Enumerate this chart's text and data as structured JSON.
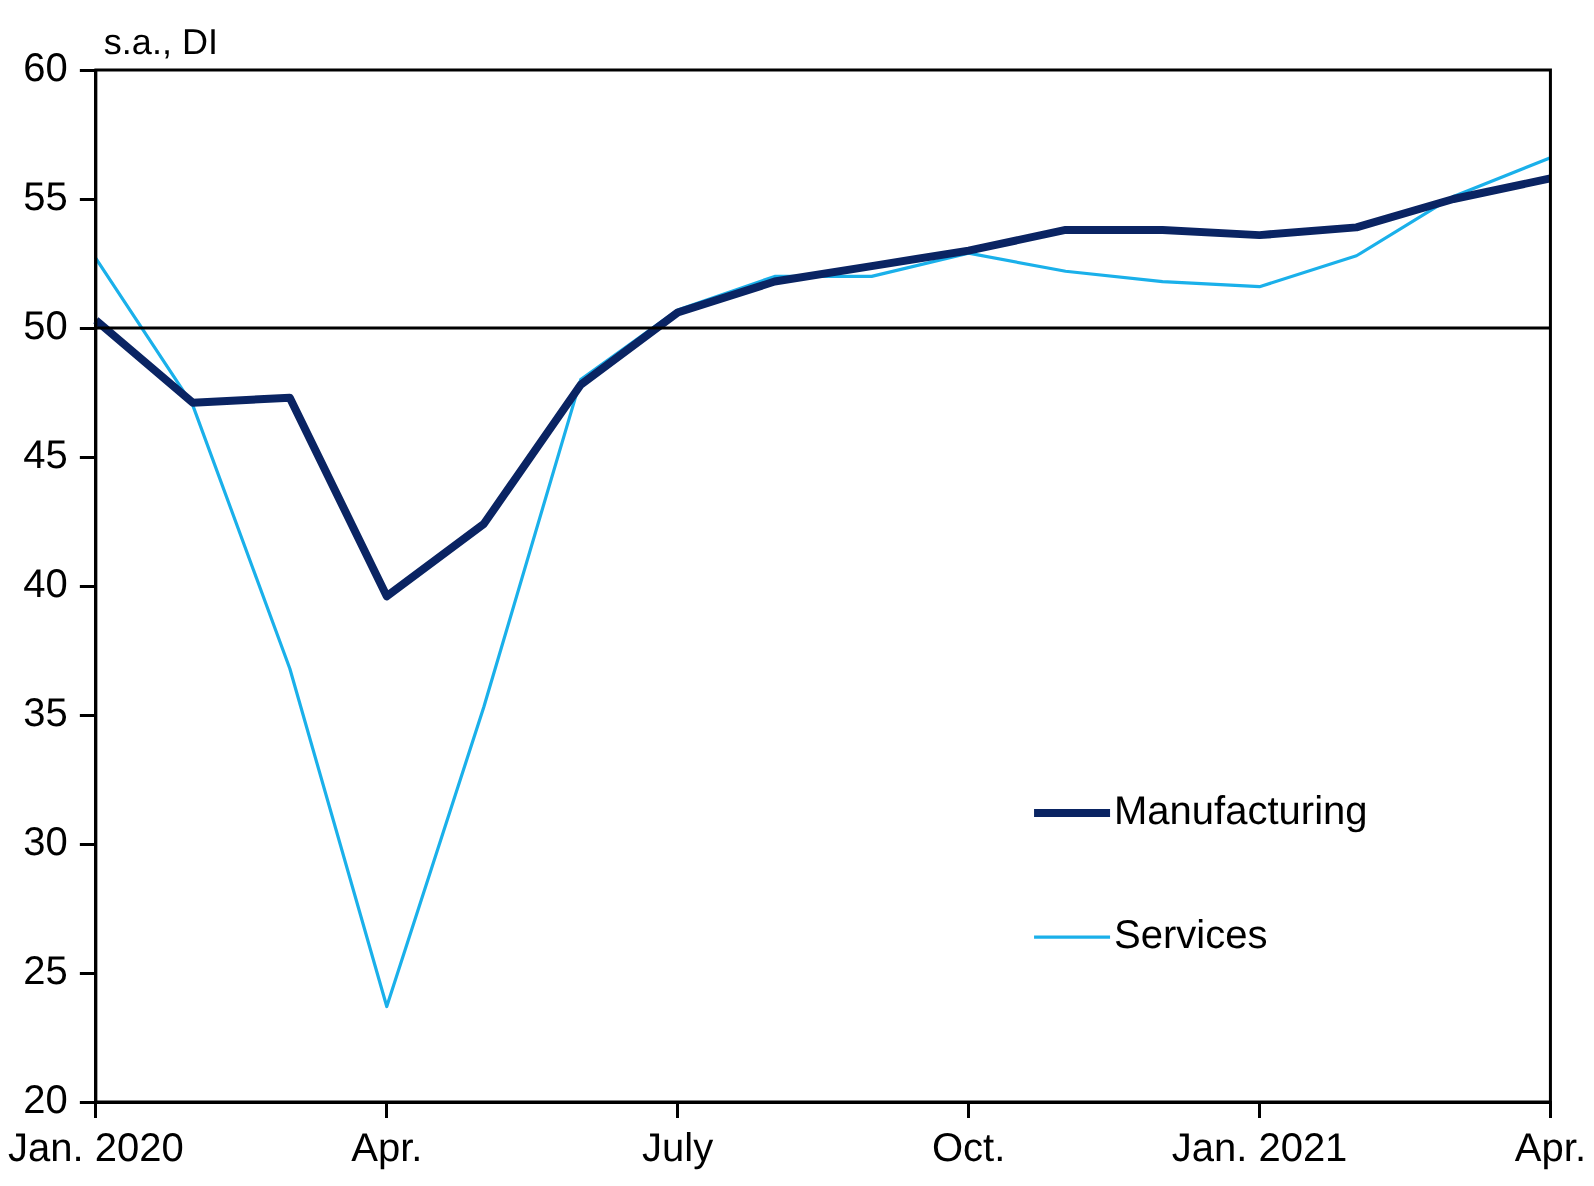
{
  "chart_data": {
    "type": "line",
    "ylabel": "s.a., DI",
    "categories": [
      "Jan. 2020",
      null,
      null,
      "Apr.",
      null,
      null,
      "July",
      null,
      null,
      "Oct.",
      null,
      null,
      "Jan. 2021",
      null,
      null,
      "Apr."
    ],
    "series": [
      {
        "name": "Manufacturing",
        "color": "#0a2463",
        "values": [
          50.3,
          47.1,
          47.3,
          39.6,
          42.4,
          47.8,
          50.6,
          51.8,
          52.4,
          53.0,
          53.8,
          53.8,
          53.6,
          53.9,
          55.0,
          55.8
        ]
      },
      {
        "name": "Services",
        "color": "#1ab0ea",
        "values": [
          52.7,
          47.0,
          36.8,
          23.7,
          35.3,
          48.0,
          50.7,
          52.0,
          52.0,
          52.9,
          52.2,
          51.8,
          51.6,
          52.8,
          55.1,
          56.6
        ]
      }
    ],
    "ylim": [
      20,
      60
    ],
    "yticks": [
      20,
      25,
      30,
      35,
      40,
      45,
      50,
      55,
      60
    ],
    "ref_lines": [
      {
        "axis": "y",
        "value": 50,
        "color": "#000000"
      }
    ],
    "grid": false,
    "legend": "bottom right",
    "marker": "none",
    "line_style": "solid"
  }
}
